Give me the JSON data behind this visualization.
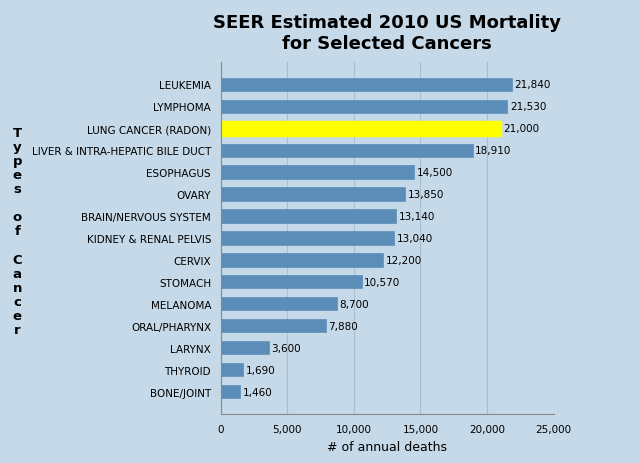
{
  "title": "SEER Estimated 2010 US Mortality\nfor Selected Cancers",
  "xlabel": "# of annual deaths",
  "ylabel_chars": [
    "T",
    "y",
    "p",
    "e",
    "s",
    "",
    "o",
    "f",
    "",
    "C",
    "a",
    "n",
    "c",
    "e",
    "r"
  ],
  "categories": [
    "BONE/JOINT",
    "THYROID",
    "LARYNX",
    "ORAL/PHARYNX",
    "MELANOMA",
    "STOMACH",
    "CERVIX",
    "KIDNEY & RENAL PELVIS",
    "BRAIN/NERVOUS SYSTEM",
    "OVARY",
    "ESOPHAGUS",
    "LIVER & INTRA-HEPATIC BILE DUCT",
    "LUNG CANCER (RADON)",
    "LYMPHOMA",
    "LEUKEMIA"
  ],
  "values": [
    1460,
    1690,
    3600,
    7880,
    8700,
    10570,
    12200,
    13040,
    13140,
    13850,
    14500,
    18910,
    21000,
    21530,
    21840
  ],
  "bar_color": "#5b8db8",
  "highlight_color": "#ffff00",
  "highlight_index": 12,
  "background_color": "#c5d9e8",
  "plot_border_color": "#a0b8cc",
  "xlim": [
    0,
    25000
  ],
  "xticks": [
    0,
    5000,
    10000,
    15000,
    20000,
    25000
  ],
  "value_labels": [
    "1,460",
    "1,690",
    "3,600",
    "7,880",
    "8,700",
    "10,570",
    "12,200",
    "13,040",
    "13,140",
    "13,850",
    "14,500",
    "18,910",
    "21,000",
    "21,530",
    "21,840"
  ],
  "grid_color": "#a8bfce",
  "title_fontsize": 13,
  "label_fontsize": 7.5,
  "xlabel_fontsize": 9,
  "ylabel_fontsize": 9.5,
  "bar_height": 0.6
}
